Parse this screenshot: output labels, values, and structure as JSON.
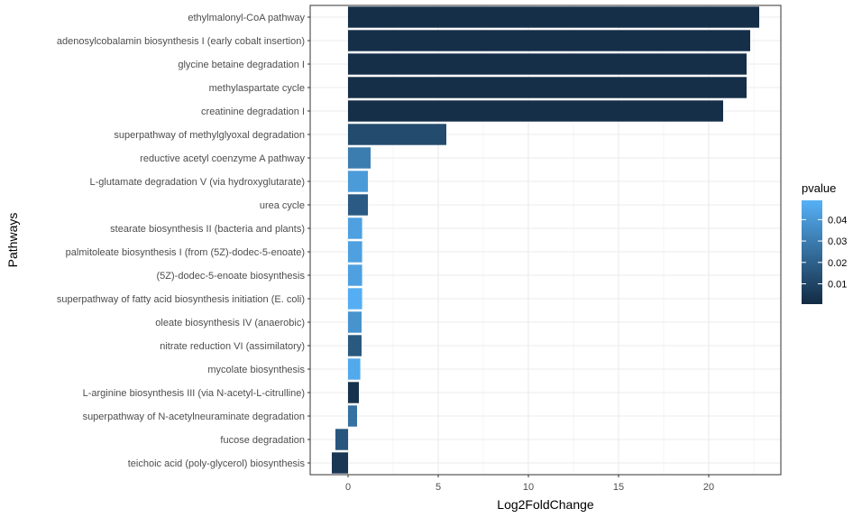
{
  "chart_data": {
    "type": "bar",
    "orientation": "horizontal",
    "xlabel": "Log2FoldChange",
    "ylabel": "Pathways",
    "xlim": [
      -2.1,
      24.0
    ],
    "x_ticks": [
      0,
      5,
      10,
      15,
      20
    ],
    "grid": true,
    "legend": {
      "title": "pvalue",
      "placement": "right",
      "range": [
        0.0005,
        0.049
      ],
      "ticks": [
        0.01,
        0.02,
        0.03,
        0.04
      ],
      "tick_labels": [
        "0.01",
        "0.02",
        "0.03",
        "0.04"
      ],
      "color_low": "#132B43",
      "color_high": "#56B1F7"
    },
    "categories": [
      "ethylmalonyl-CoA pathway",
      "adenosylcobalamin biosynthesis I (early cobalt insertion)",
      "glycine betaine degradation I",
      "methylaspartate cycle",
      "creatinine degradation I",
      "superpathway of methylglyoxal degradation",
      "reductive acetyl coenzyme A pathway",
      "L-glutamate degradation V (via hydroxyglutarate)",
      "urea cycle",
      "stearate biosynthesis II (bacteria and plants)",
      "palmitoleate biosynthesis I (from (5Z)-dodec-5-enoate)",
      "(5Z)-dodec-5-enoate biosynthesis",
      "superpathway of fatty acid biosynthesis initiation (E. coli)",
      "oleate biosynthesis IV (anaerobic)",
      "nitrate reduction VI (assimilatory)",
      "mycolate biosynthesis",
      "L-arginine biosynthesis III (via N-acetyl-L-citrulline)",
      "superpathway of N-acetylneuraminate degradation",
      "fucose degradation",
      "teichoic acid (poly-glycerol) biosynthesis"
    ],
    "values": [
      22.8,
      22.3,
      22.1,
      22.1,
      20.8,
      5.45,
      1.25,
      1.1,
      1.1,
      0.78,
      0.78,
      0.78,
      0.78,
      0.75,
      0.75,
      0.68,
      0.6,
      0.5,
      -0.7,
      -0.9
    ],
    "pvalue": [
      0.002,
      0.002,
      0.002,
      0.002,
      0.002,
      0.012,
      0.03,
      0.041,
      0.018,
      0.043,
      0.043,
      0.043,
      0.048,
      0.038,
      0.017,
      0.046,
      0.003,
      0.026,
      0.016,
      0.005
    ]
  }
}
